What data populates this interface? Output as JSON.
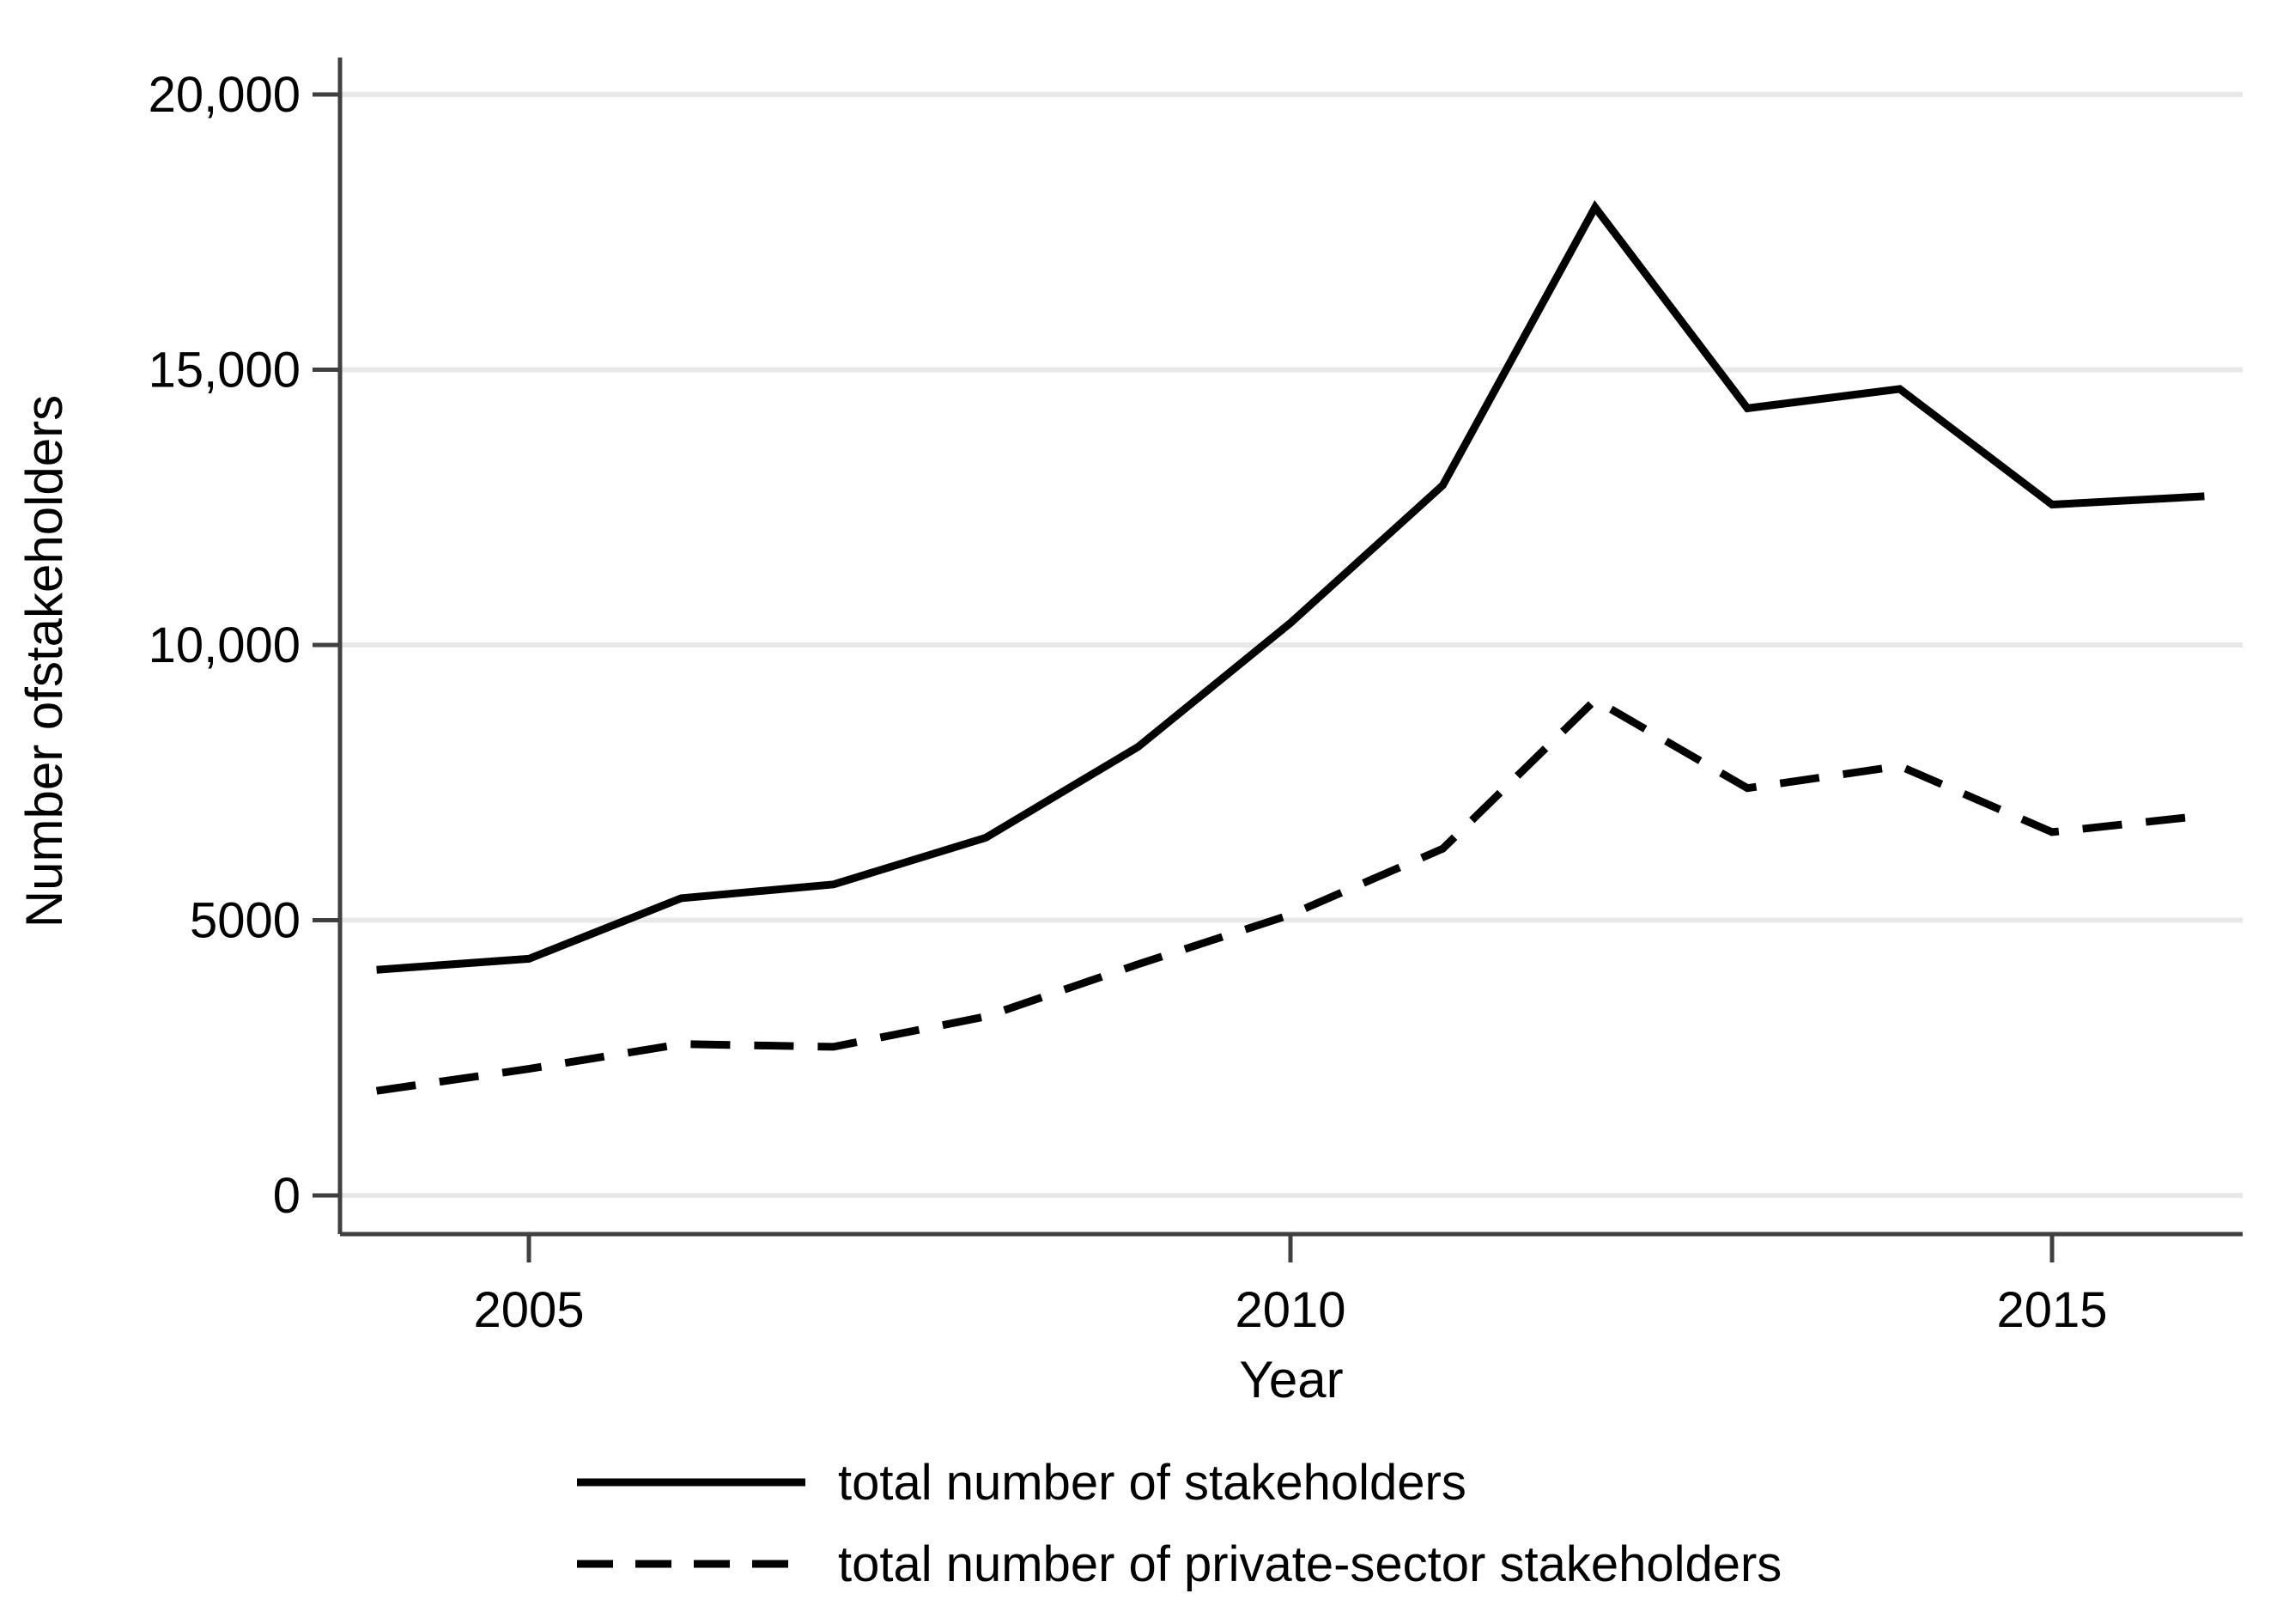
{
  "chart_data": {
    "type": "line",
    "title": "",
    "xlabel": "Year",
    "ylabel": "Number ofstakeholders",
    "x": [
      2004,
      2005,
      2006,
      2007,
      2008,
      2009,
      2010,
      2011,
      2012,
      2013,
      2014,
      2015,
      2016
    ],
    "series": [
      {
        "name": "total number of stakeholders",
        "style": "solid",
        "values": [
          4100,
          4300,
          5400,
          5650,
          6500,
          8150,
          10400,
          12900,
          17950,
          14300,
          14650,
          12550,
          12700
        ]
      },
      {
        "name": "total number of private-sector stakeholders",
        "style": "dashed",
        "values": [
          1900,
          2300,
          2750,
          2700,
          3250,
          4200,
          5100,
          6300,
          9000,
          7400,
          7800,
          6600,
          6900
        ]
      }
    ],
    "xticks": {
      "values": [
        2005,
        2010,
        2015
      ],
      "labels": [
        "2005",
        "2010",
        "2015"
      ]
    },
    "yticks": {
      "values": [
        0,
        5000,
        10000,
        15000,
        20000
      ],
      "labels": [
        "0",
        "5000",
        "10,000",
        "15,000",
        "20,000"
      ]
    },
    "xlim": [
      2004,
      2016
    ],
    "ylim": [
      0,
      20000
    ],
    "grid": "horizontal",
    "legend_position": "bottom-left"
  },
  "colors": {
    "series_line": "#000000",
    "axis": "#404040",
    "gridline": "#e8e8e8",
    "text": "#000000",
    "background": "#ffffff"
  }
}
